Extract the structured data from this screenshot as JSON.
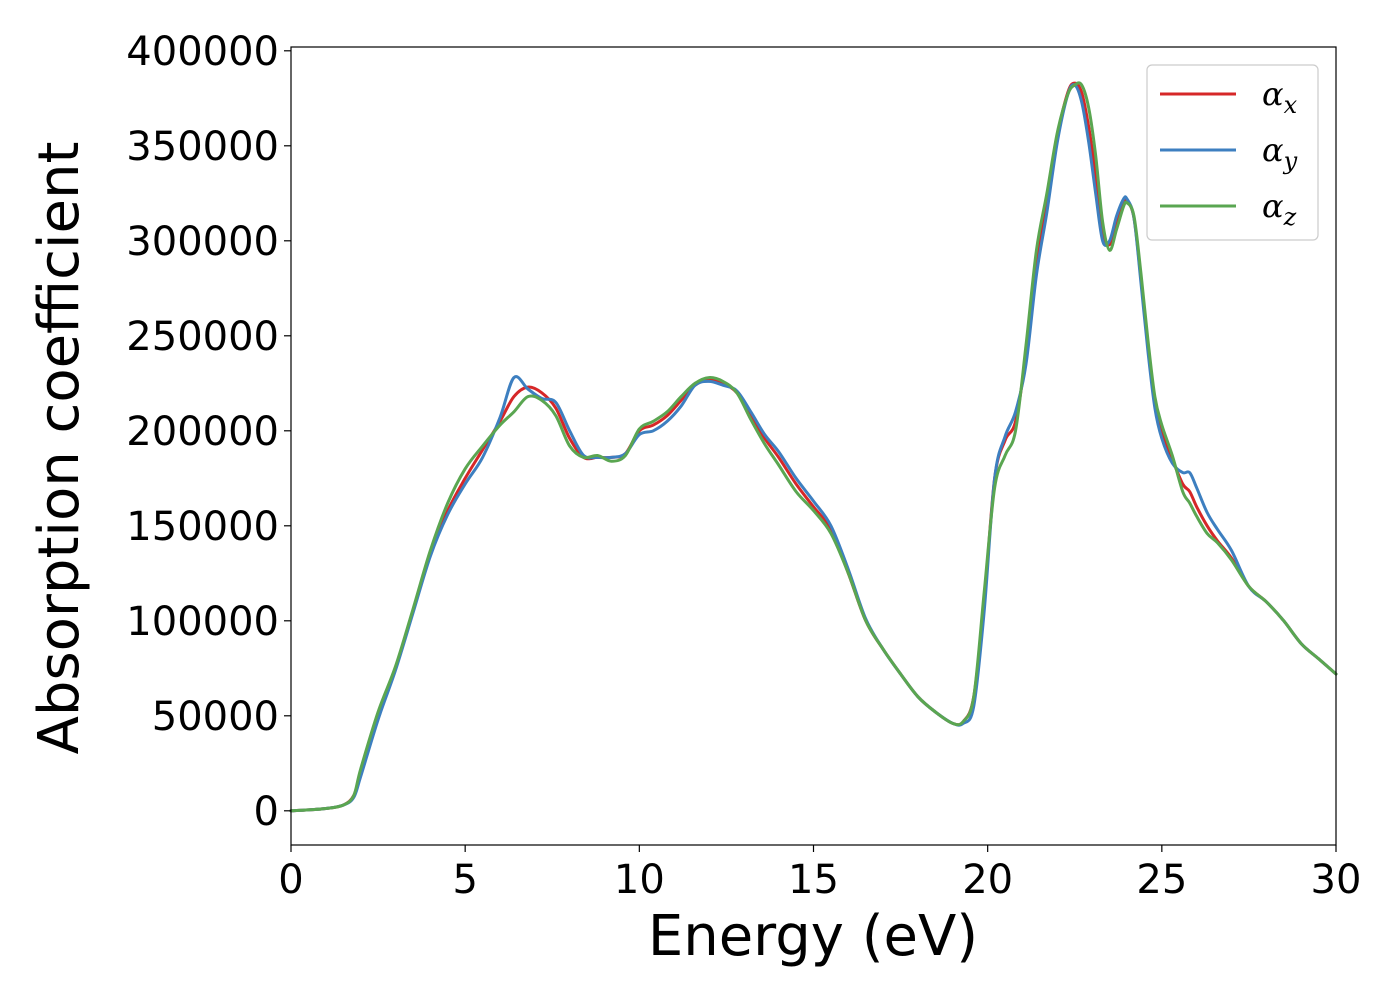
{
  "chart_data": {
    "type": "line",
    "xlabel": "Energy (eV)",
    "ylabel": "Absorption coefficient",
    "xlim": [
      0,
      30
    ],
    "ylim": [
      -18000,
      402000
    ],
    "xticks": [
      0,
      5,
      10,
      15,
      20,
      25,
      30
    ],
    "yticks": [
      0,
      50000,
      100000,
      150000,
      200000,
      250000,
      300000,
      350000,
      400000
    ],
    "grid": false,
    "legend_position": "top-right",
    "x": [
      0,
      0.5,
      1.0,
      1.5,
      1.8,
      2.0,
      2.5,
      3.0,
      3.5,
      4.0,
      4.5,
      5.0,
      5.5,
      6.0,
      6.4,
      6.8,
      7.2,
      7.6,
      8.0,
      8.4,
      8.8,
      9.2,
      9.6,
      10.0,
      10.4,
      10.8,
      11.2,
      11.6,
      12.0,
      12.4,
      12.8,
      13.2,
      13.6,
      14.0,
      14.5,
      15.0,
      15.5,
      16.0,
      16.5,
      17.0,
      17.5,
      18.0,
      18.5,
      19.0,
      19.3,
      19.6,
      19.9,
      20.2,
      20.5,
      20.8,
      21.1,
      21.4,
      21.7,
      22.0,
      22.3,
      22.5,
      22.7,
      22.9,
      23.1,
      23.3,
      23.5,
      23.7,
      23.9,
      24.0,
      24.2,
      24.4,
      24.6,
      24.8,
      25.0,
      25.3,
      25.6,
      25.8,
      26.0,
      26.3,
      26.6,
      27.0,
      27.5,
      28.0,
      28.5,
      29.0,
      29.5,
      30.0
    ],
    "series": [
      {
        "name": "α_x",
        "color": "#d62728",
        "values": [
          0,
          500,
          1200,
          3000,
          8000,
          20000,
          50000,
          75000,
          105000,
          135000,
          158000,
          175000,
          190000,
          205000,
          218000,
          223000,
          220000,
          212000,
          196000,
          186000,
          186000,
          186000,
          188000,
          200000,
          203000,
          208000,
          216000,
          224000,
          227000,
          225000,
          220000,
          208000,
          196000,
          186000,
          172000,
          160000,
          148000,
          125000,
          100000,
          85000,
          72000,
          60000,
          52000,
          46000,
          47000,
          60000,
          110000,
          175000,
          195000,
          205000,
          240000,
          290000,
          320000,
          355000,
          378000,
          383000,
          378000,
          360000,
          335000,
          305000,
          298000,
          310000,
          320000,
          321000,
          312000,
          280000,
          245000,
          215000,
          200000,
          185000,
          172000,
          168000,
          160000,
          150000,
          142000,
          133000,
          118000,
          110000,
          100000,
          88000,
          80000,
          72000
        ]
      },
      {
        "name": "α_y",
        "color": "#3d7fc0",
        "values": [
          0,
          500,
          1200,
          3000,
          7000,
          18000,
          48000,
          74000,
          104000,
          134000,
          156000,
          172000,
          186000,
          207000,
          228000,
          222000,
          217000,
          215000,
          200000,
          187000,
          186000,
          186000,
          188000,
          198000,
          200000,
          205000,
          213000,
          224000,
          226000,
          224000,
          221000,
          210000,
          198000,
          189000,
          175000,
          163000,
          150000,
          127000,
          101000,
          85000,
          72000,
          60000,
          52000,
          46000,
          46000,
          55000,
          105000,
          175000,
          197000,
          210000,
          235000,
          282000,
          315000,
          352000,
          377000,
          382000,
          373000,
          352000,
          325000,
          300000,
          300000,
          313000,
          322000,
          322000,
          312000,
          278000,
          242000,
          212000,
          196000,
          183000,
          178000,
          178000,
          170000,
          157000,
          148000,
          137000,
          118000,
          110000,
          100000,
          88000,
          80000,
          72000
        ]
      },
      {
        "name": "α_z",
        "color": "#5aa651",
        "values": [
          0,
          500,
          1200,
          3000,
          8000,
          22000,
          52000,
          76000,
          106000,
          137000,
          162000,
          180000,
          192000,
          203000,
          210000,
          218000,
          216000,
          208000,
          192000,
          186000,
          187000,
          184000,
          187000,
          201000,
          205000,
          210000,
          218000,
          225000,
          228000,
          226000,
          220000,
          206000,
          193000,
          182000,
          168000,
          158000,
          146000,
          125000,
          100000,
          85000,
          72000,
          60000,
          52000,
          46000,
          47000,
          60000,
          115000,
          170000,
          187000,
          200000,
          245000,
          295000,
          325000,
          357000,
          377000,
          382000,
          382000,
          370000,
          345000,
          310000,
          295000,
          306000,
          318000,
          320000,
          313000,
          283000,
          248000,
          218000,
          203000,
          187000,
          168000,
          162000,
          155000,
          146000,
          141000,
          132000,
          118000,
          110000,
          100000,
          88000,
          80000,
          72000
        ]
      }
    ]
  }
}
